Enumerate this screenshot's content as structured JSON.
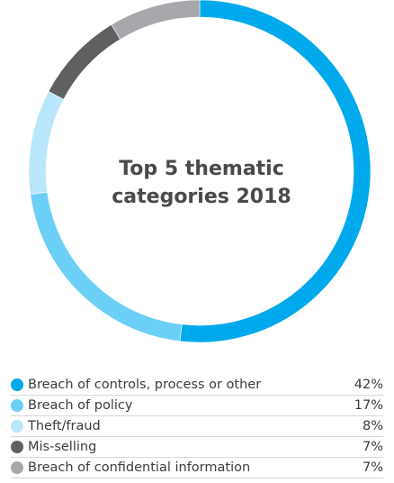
{
  "chart_data": {
    "type": "pie",
    "title": "Top 5 thematic categories 2018",
    "center_title_lines": [
      "Top 5 thematic",
      "categories 2018"
    ],
    "categories": [
      "Breach of controls, process or other",
      "Breach of policy",
      "Theft/fraud",
      "Mis-selling",
      "Breach of confidential information"
    ],
    "values": [
      42,
      17,
      8,
      7,
      7
    ],
    "value_labels": [
      "42%",
      "17%",
      "8%",
      "7%",
      "7%"
    ],
    "colors": [
      "#00a9ec",
      "#6ccff6",
      "#b9e6fa",
      "#5e6062",
      "#a6a8ab"
    ],
    "donut": true,
    "start": "top",
    "direction": "clockwise",
    "legend_position": "bottom"
  }
}
